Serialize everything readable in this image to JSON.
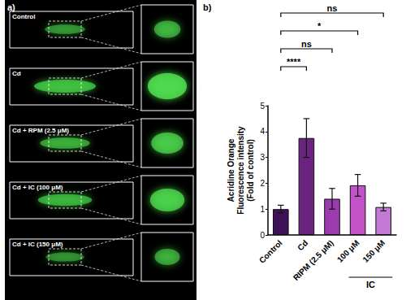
{
  "image_panel": {
    "label": "a)",
    "rows": [
      "Control",
      "Cd",
      "Cd + RPM (2.5 μM)",
      "Cd + IC (100 μM)",
      "Cd + IC (150 μM)"
    ]
  },
  "chart_panel_label": "b)",
  "chart_data": {
    "type": "bar",
    "y_label": "Acridine Orange\nFluorescence intensity\n(Fold of control)",
    "categories": [
      "Control",
      "Cd",
      "RIPM (2.5 μM)",
      "100 μM",
      "150 μM"
    ],
    "values": [
      1.0,
      3.75,
      1.4,
      1.92,
      1.08
    ],
    "errors": [
      0.15,
      0.75,
      0.4,
      0.42,
      0.15
    ],
    "colors": [
      "#3d1258",
      "#6a2480",
      "#9c3bb0",
      "#c152c8",
      "#c47ad4"
    ],
    "ylim": [
      0,
      5
    ],
    "yticks": [
      0,
      1,
      2,
      3,
      4,
      5
    ],
    "grid": false,
    "group_label": {
      "text": "IC",
      "categories": [
        "100 μM",
        "150 μM"
      ]
    },
    "comparisons": [
      {
        "from": "Control",
        "to": "Cd",
        "label": "****"
      },
      {
        "from": "Control",
        "to": "RIPM (2.5 μM)",
        "label": "ns"
      },
      {
        "from": "Control",
        "to": "100 μM",
        "label": "*"
      },
      {
        "from": "Control",
        "to": "150 μM",
        "label": "ns"
      }
    ]
  }
}
